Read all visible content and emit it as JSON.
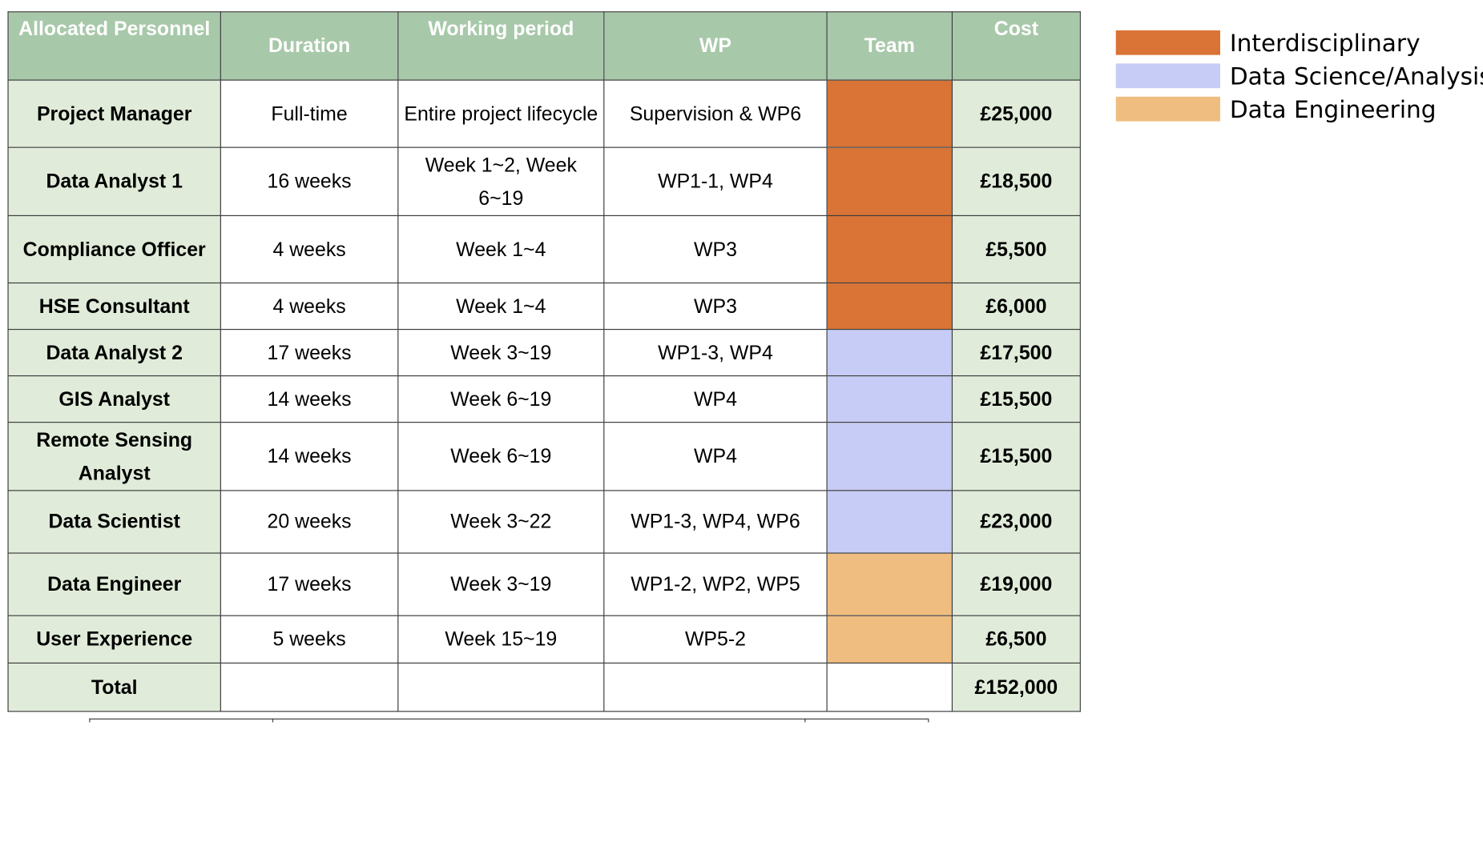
{
  "headers": {
    "personnel": "Allocated Personnel",
    "duration": "Duration",
    "working_period": "Working period",
    "wp": "WP",
    "team": "Team",
    "cost": "Cost"
  },
  "colors": {
    "header_bg": "#a8c8aa",
    "header_text": "#ffffff",
    "row_label_bg": "#e0ecd9",
    "interdisciplinary": "#d97436",
    "data_science": "#c7ccf6",
    "data_engineering": "#f0bd80"
  },
  "rows": [
    {
      "role": "Project Manager",
      "duration": "Full-time",
      "period": "Entire project lifecycle",
      "wp": "Supervision & WP6",
      "team": "Interdisciplinary",
      "cost": "£25,000"
    },
    {
      "role": "Data Analyst 1",
      "duration": "16 weeks",
      "period": "Week 1~2, Week 6~19",
      "wp": "WP1-1, WP4",
      "team": "Interdisciplinary",
      "cost": "£18,500"
    },
    {
      "role": "Compliance Officer",
      "duration": "4 weeks",
      "period": "Week 1~4",
      "wp": "WP3",
      "team": "Interdisciplinary",
      "cost": "£5,500"
    },
    {
      "role": "HSE Consultant",
      "duration": "4 weeks",
      "period": "Week 1~4",
      "wp": "WP3",
      "team": "Interdisciplinary",
      "cost": "£6,000"
    },
    {
      "role": "Data Analyst 2",
      "duration": "17 weeks",
      "period": "Week 3~19",
      "wp": "WP1-3, WP4",
      "team": "Data Science/Analysis",
      "cost": "£17,500"
    },
    {
      "role": "GIS Analyst",
      "duration": "14 weeks",
      "period": "Week 6~19",
      "wp": "WP4",
      "team": "Data Science/Analysis",
      "cost": "£15,500"
    },
    {
      "role": "Remote Sensing Analyst",
      "duration": "14 weeks",
      "period": "Week 6~19",
      "wp": "WP4",
      "team": "Data Science/Analysis",
      "cost": "£15,500"
    },
    {
      "role": "Data Scientist",
      "duration": "20 weeks",
      "period": "Week 3~22",
      "wp": "WP1-3, WP4, WP6",
      "team": "Data Science/Analysis",
      "cost": "£23,000"
    },
    {
      "role": "Data Engineer",
      "duration": "17 weeks",
      "period": "Week 3~19",
      "wp": "WP1-2, WP2, WP5",
      "team": "Data Engineering",
      "cost": "£19,000"
    },
    {
      "role": "User Experience",
      "duration": "5 weeks",
      "period": "Week 15~19",
      "wp": "WP5-2",
      "team": "Data Engineering",
      "cost": "£6,500"
    }
  ],
  "total": {
    "label": "Total",
    "cost": "£152,000"
  },
  "legend": [
    {
      "label": "Interdisciplinary",
      "color": "#d97436"
    },
    {
      "label": "Data Science/Analysis",
      "color": "#c7ccf6"
    },
    {
      "label": "Data Engineering",
      "color": "#f0bd80"
    }
  ]
}
